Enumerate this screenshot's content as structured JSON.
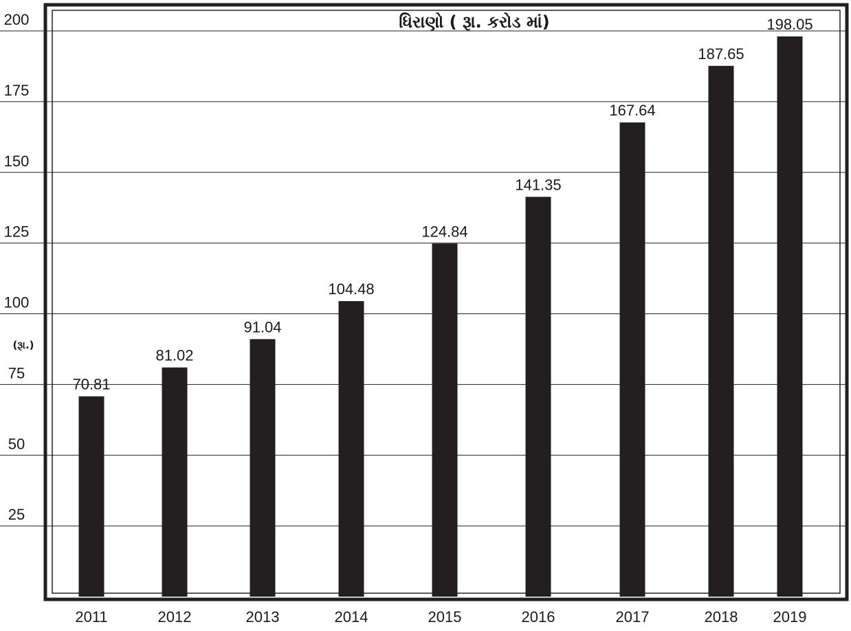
{
  "chart_data": {
    "type": "bar",
    "title": "ધિરાણો ( રૂા. કરોડ માં)",
    "ylabel": "(રૂા.)",
    "xlabel": "",
    "categories": [
      "2011",
      "2012",
      "2013",
      "2014",
      "2015",
      "2016",
      "2017",
      "2018",
      "2019"
    ],
    "values": [
      70.81,
      81.02,
      91.04,
      104.48,
      124.84,
      141.35,
      167.64,
      187.65,
      198.05
    ],
    "value_labels": [
      "70.81",
      "81.02",
      "91.04",
      "104.48",
      "124.84",
      "141.35",
      "167.64",
      "187.65",
      "198.05"
    ],
    "yticks": [
      25,
      50,
      75,
      100,
      125,
      150,
      175,
      200
    ],
    "ylim": [
      0,
      200
    ],
    "grid": true,
    "bar_color": "#231f20"
  }
}
